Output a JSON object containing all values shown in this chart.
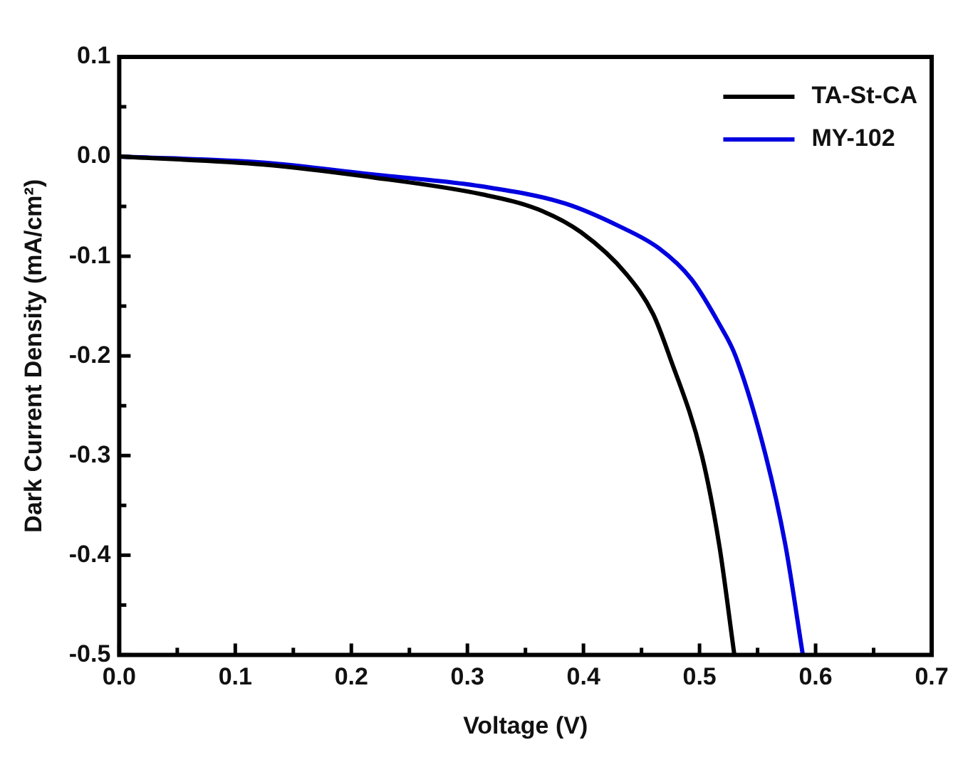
{
  "chart_data": {
    "type": "line",
    "xlabel": "Voltage (V)",
    "ylabel": "Dark Current Density (mA/cm²)",
    "xlim": [
      0,
      0.7
    ],
    "ylim": [
      -0.5,
      0.1
    ],
    "xticks": [
      {
        "value": 0,
        "label": "0.0"
      },
      {
        "value": 0.05,
        "label": null
      },
      0.1,
      {
        "value": 0.15,
        "label": null
      },
      0.2,
      {
        "value": 0.25,
        "label": null
      },
      0.3,
      {
        "value": 0.35,
        "label": null
      },
      0.4,
      {
        "value": 0.45,
        "label": null
      },
      0.5,
      {
        "value": 0.55,
        "label": null
      },
      0.6,
      {
        "value": 0.65,
        "label": null
      },
      0.7
    ],
    "yticks": [
      -0.5,
      {
        "value": -0.45,
        "label": null
      },
      -0.4,
      {
        "value": -0.35,
        "label": null
      },
      -0.3,
      {
        "value": -0.25,
        "label": null
      },
      -0.2,
      {
        "value": -0.15,
        "label": null
      },
      -0.1,
      {
        "value": -0.05,
        "label": null
      },
      {
        "value": 0,
        "label": "0.0"
      },
      {
        "value": 0.05,
        "label": null
      },
      0.1
    ],
    "grid": false,
    "legend": "top right",
    "marker": "none",
    "line_style": "solid",
    "series": [
      {
        "name": "TA-St-CA",
        "color": "#000000",
        "x": [
          0,
          0.124,
          0.219,
          0.313,
          0.361,
          0.398,
          0.437,
          0.46,
          0.474,
          0.502,
          0.517,
          0.53
        ],
        "values": [
          0,
          -0.008,
          -0.021,
          -0.038,
          -0.053,
          -0.076,
          -0.118,
          -0.158,
          -0.2,
          -0.3,
          -0.39,
          -0.5
        ]
      },
      {
        "name": "MY-102",
        "color": "#0000e0",
        "x": [
          0,
          0.124,
          0.219,
          0.313,
          0.384,
          0.431,
          0.465,
          0.493,
          0.517,
          0.531,
          0.557,
          0.574,
          0.589
        ],
        "values": [
          0,
          -0.006,
          -0.018,
          -0.03,
          -0.047,
          -0.07,
          -0.092,
          -0.123,
          -0.168,
          -0.2,
          -0.3,
          -0.39,
          -0.5
        ]
      }
    ]
  }
}
